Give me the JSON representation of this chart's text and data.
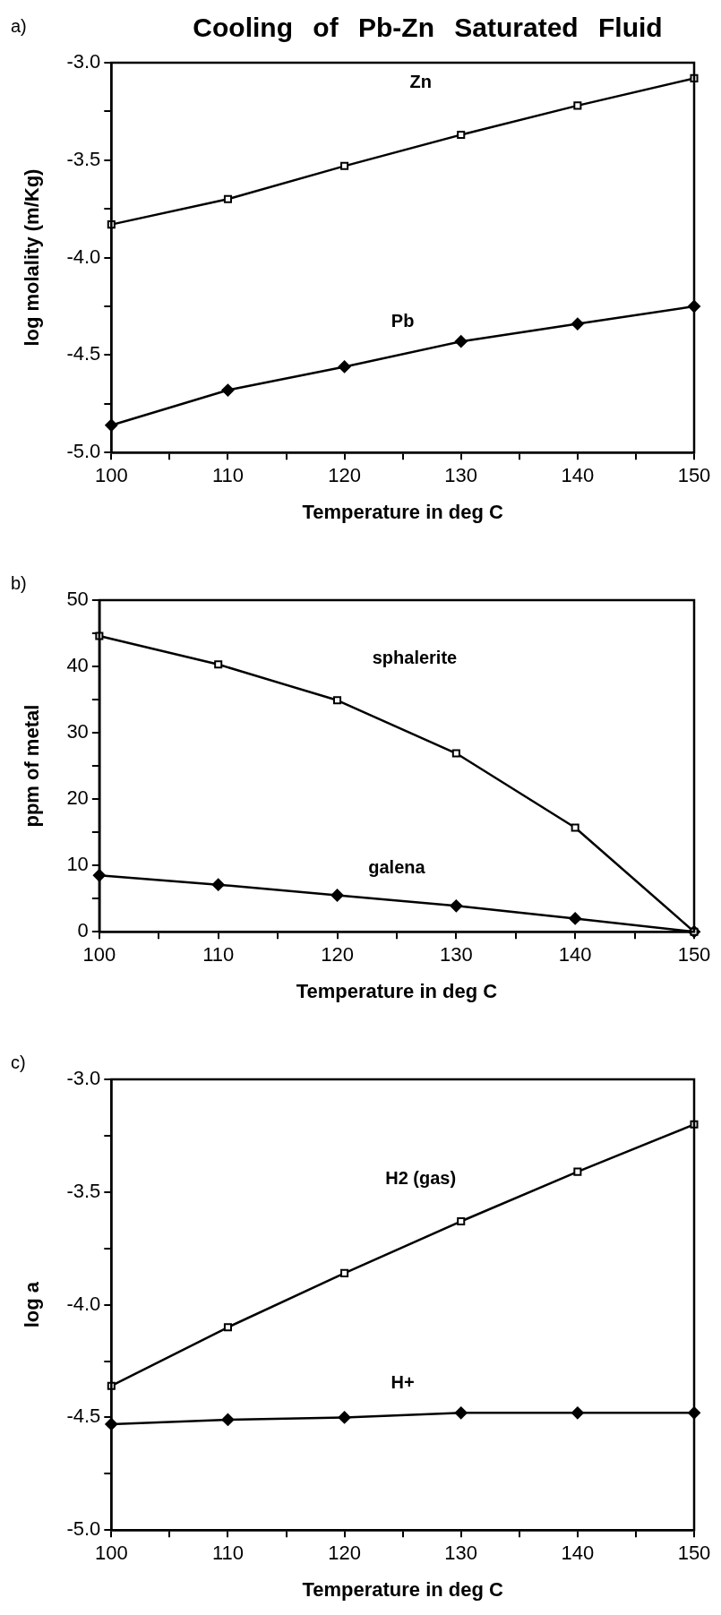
{
  "chart_data": [
    {
      "type": "line",
      "title": "Cooling of Pb-Zn Saturated Fluid",
      "annotations": [
        "a)"
      ],
      "xlabel": "Temperature in deg C",
      "ylabel": "log molality (m/Kg)",
      "x": [
        100,
        110,
        120,
        130,
        140,
        150
      ],
      "xlim": [
        100,
        150
      ],
      "xticks": [
        100,
        {
          "value": 105,
          "label": null
        },
        110,
        {
          "value": 115,
          "label": null
        },
        120,
        {
          "value": 125,
          "label": null
        },
        130,
        {
          "value": 135,
          "label": null
        },
        140,
        {
          "value": 145,
          "label": null
        },
        150
      ],
      "ylim": [
        -5.0,
        -3.0
      ],
      "yticks": [
        {
          "value": -5,
          "label": "-5.0"
        },
        {
          "value": -4.75,
          "label": null
        },
        -4.5,
        {
          "value": -4.25,
          "label": null
        },
        {
          "value": -4,
          "label": "-4.0"
        },
        {
          "value": -3.75,
          "label": null
        },
        -3.5,
        {
          "value": -3.25,
          "label": null
        },
        {
          "value": -3,
          "label": "-3.0"
        }
      ],
      "grid": false,
      "legend": false,
      "line_style": "solid",
      "series": [
        {
          "name": "Zn",
          "color": "#000000",
          "marker": "square",
          "values": [
            -3.83,
            -3.7,
            -3.53,
            -3.37,
            -3.22,
            -3.08
          ]
        },
        {
          "name": "Pb",
          "color": "#000000",
          "marker": "diamond",
          "values": [
            -4.86,
            -4.68,
            -4.56,
            -4.43,
            -4.34,
            -4.25
          ]
        }
      ]
    },
    {
      "type": "line",
      "annotations": [
        "b)"
      ],
      "xlabel": "Temperature in deg C",
      "ylabel": "ppm of metal",
      "x": [
        100,
        110,
        120,
        130,
        140,
        150
      ],
      "xlim": [
        100,
        150
      ],
      "xticks": [
        100,
        {
          "value": 105,
          "label": null
        },
        110,
        {
          "value": 115,
          "label": null
        },
        120,
        {
          "value": 125,
          "label": null
        },
        130,
        {
          "value": 135,
          "label": null
        },
        140,
        {
          "value": 145,
          "label": null
        },
        150
      ],
      "ylim": [
        0,
        50
      ],
      "yticks": [
        0,
        {
          "value": 5,
          "label": null
        },
        10,
        {
          "value": 15,
          "label": null
        },
        20,
        {
          "value": 25,
          "label": null
        },
        30,
        {
          "value": 35,
          "label": null
        },
        40,
        {
          "value": 45,
          "label": null
        },
        50
      ],
      "grid": false,
      "legend": false,
      "line_style": "solid",
      "series": [
        {
          "name": "sphalerite",
          "color": "#000000",
          "marker": "square",
          "values": [
            44.6,
            40.3,
            34.9,
            26.9,
            15.7,
            0
          ]
        },
        {
          "name": "galena",
          "color": "#000000",
          "marker": "diamond",
          "values": [
            8.5,
            7.1,
            5.5,
            3.9,
            2.0,
            0
          ]
        }
      ]
    },
    {
      "type": "line",
      "annotations": [
        "c)"
      ],
      "xlabel": "Temperature in deg C",
      "ylabel": "log a",
      "x": [
        100,
        110,
        120,
        130,
        140,
        150
      ],
      "xlim": [
        100,
        150
      ],
      "xticks": [
        100,
        {
          "value": 105,
          "label": null
        },
        110,
        {
          "value": 115,
          "label": null
        },
        120,
        {
          "value": 125,
          "label": null
        },
        130,
        {
          "value": 135,
          "label": null
        },
        140,
        {
          "value": 145,
          "label": null
        },
        150
      ],
      "ylim": [
        -5.0,
        -3.0
      ],
      "yticks": [
        {
          "value": -5,
          "label": "-5.0"
        },
        {
          "value": -4.75,
          "label": null
        },
        -4.5,
        {
          "value": -4.25,
          "label": null
        },
        {
          "value": -4,
          "label": "-4.0"
        },
        {
          "value": -3.75,
          "label": null
        },
        -3.5,
        {
          "value": -3.25,
          "label": null
        },
        {
          "value": -3,
          "label": "-3.0"
        }
      ],
      "grid": false,
      "legend": false,
      "line_style": "solid",
      "series": [
        {
          "name": "H2 (gas)",
          "color": "#000000",
          "marker": "square",
          "values": [
            -4.36,
            -4.1,
            -3.86,
            -3.63,
            -3.41,
            -3.2
          ]
        },
        {
          "name": "H+",
          "color": "#000000",
          "marker": "diamond",
          "values": [
            -4.53,
            -4.51,
            -4.5,
            -4.48,
            -4.48,
            -4.48
          ]
        }
      ]
    }
  ]
}
